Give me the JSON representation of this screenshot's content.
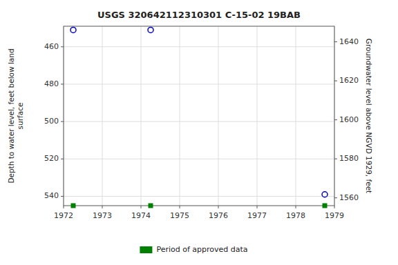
{
  "chart_data": {
    "type": "scatter",
    "title": "USGS 320642112310301 C-15-02 19BAB",
    "ylabel": "Depth to water level, feet below land\nsurface",
    "y2label": "Groundwater level above NGVD 1929, feet",
    "series": [
      {
        "color": "#0000cc",
        "marker": "open-circle",
        "x": [
          1972.25,
          1974.25,
          1978.75
        ],
        "values": [
          451,
          451,
          539
        ]
      },
      {
        "name": "Period of approved data",
        "color": "#008000",
        "marker": "square",
        "x": [
          1972.25,
          1974.25,
          1978.75
        ],
        "values": [
          545,
          545,
          545
        ]
      }
    ],
    "xlim": [
      1972,
      1979
    ],
    "xticks": [
      1972,
      1973,
      1974,
      1975,
      1976,
      1977,
      1978,
      1979
    ],
    "ylim": [
      545,
      449
    ],
    "yticks": [
      460,
      480,
      500,
      520,
      540
    ],
    "y2lim": [
      1556,
      1648
    ],
    "y2ticks": [
      1640,
      1620,
      1600,
      1580,
      1560
    ],
    "grid": true,
    "legend": "bottom"
  }
}
